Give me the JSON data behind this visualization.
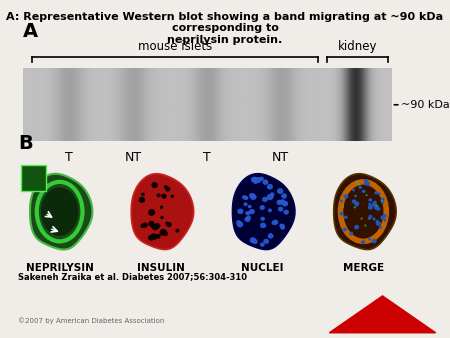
{
  "title": "A: Representative Western blot showing a band migrating at ~90 kDa corresponding to\nneprilysin protein.",
  "title_fontsize": 8,
  "bg_color": "#f0ede8",
  "panel_A_label": "A",
  "panel_B_label": "B",
  "blot_label_mouse": "mouse islets",
  "blot_label_kidney": "kidney",
  "blot_kda_label": "~90 kDa",
  "lane_labels": [
    "T",
    "NT",
    "T",
    "NT"
  ],
  "microscopy_labels": [
    "NEPRILYSIN",
    "INSULIN",
    "NUCLEI",
    "MERGE"
  ],
  "citation": "Sakeneh Zraika et al. Diabetes 2007;56:304-310",
  "copyright": "©2007 by American Diabetes Association"
}
